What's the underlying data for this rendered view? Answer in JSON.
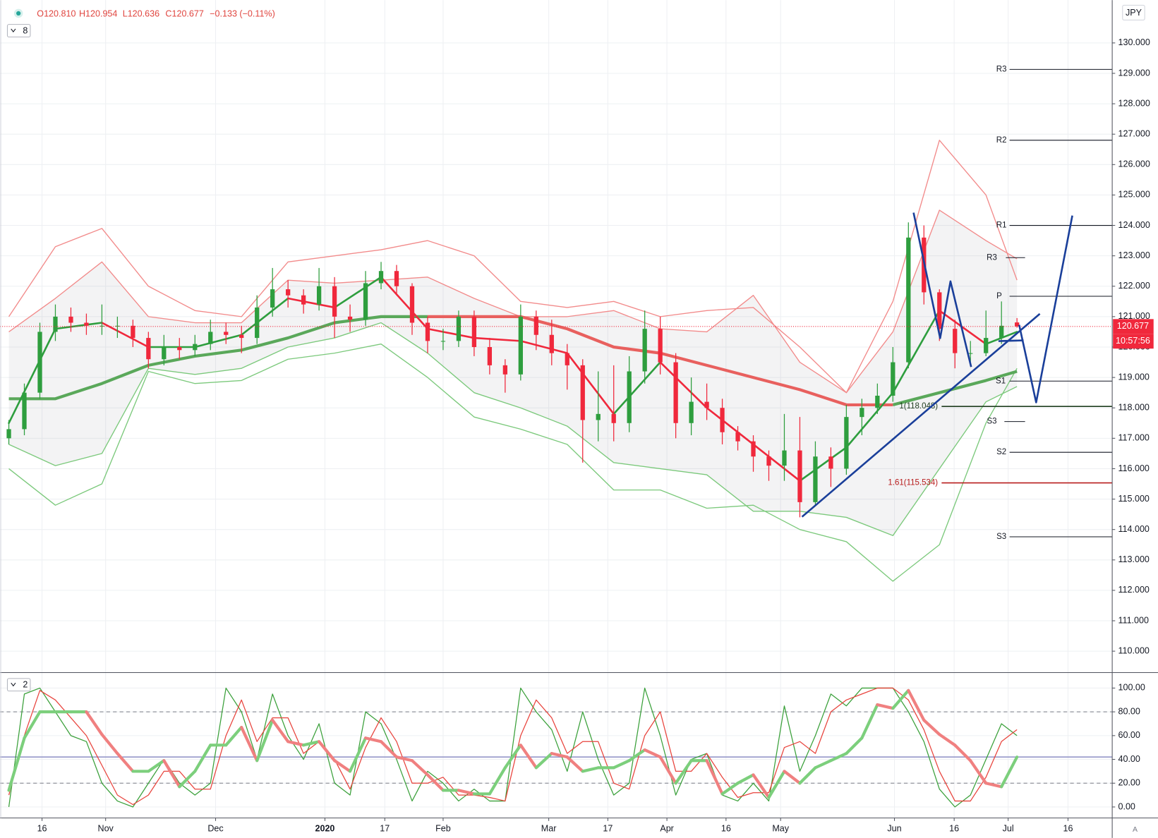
{
  "chart_data": {
    "type": "candlestick",
    "header": {
      "open": "O120.810",
      "high": "H120.954",
      "low": "L120.636",
      "close": "C120.677",
      "change": "−0.133 (−0.11%)"
    },
    "main_indicator_count": 8,
    "oscillator_indicator_count": 2,
    "currency": "JPY",
    "scale_mode": "A",
    "countdown": "10:57:56",
    "up_color": "#2e9e3e",
    "down_color": "#f0283c",
    "grid": true,
    "candles": {
      "open": [
        117.0,
        117.3,
        118.5,
        120.5,
        121.0,
        120.8,
        120.7,
        120.7,
        120.7,
        120.3,
        119.6,
        120.0,
        119.9,
        120.1,
        120.5,
        120.4,
        120.3,
        121.3,
        121.9,
        121.7,
        121.4,
        122.0,
        121.0,
        120.9,
        122.1,
        122.5,
        122.0,
        120.8,
        120.2,
        120.2,
        121.0,
        120.0,
        119.4,
        119.1,
        121.0,
        120.4,
        119.8,
        119.4,
        117.6,
        117.8,
        117.5,
        119.2,
        120.6,
        119.5,
        117.5,
        118.2,
        118.0,
        117.2,
        116.9,
        116.4,
        116.1,
        116.6,
        114.9,
        116.4,
        116.0,
        117.7,
        118.0,
        118.4,
        119.5,
        123.6,
        121.8,
        120.6,
        119.8,
        119.8,
        120.3,
        120.81
      ],
      "high": [
        117.6,
        118.8,
        120.8,
        121.4,
        121.3,
        121.1,
        121.4,
        121.0,
        120.9,
        120.5,
        120.4,
        120.3,
        120.4,
        120.9,
        120.8,
        120.7,
        121.7,
        122.6,
        122.2,
        121.9,
        122.6,
        122.3,
        121.4,
        122.5,
        122.8,
        122.7,
        122.1,
        121.0,
        120.6,
        121.2,
        121.2,
        120.3,
        119.6,
        121.4,
        121.2,
        120.9,
        120.1,
        119.6,
        119.2,
        119.4,
        119.7,
        121.2,
        121.0,
        119.8,
        119.0,
        118.8,
        118.3,
        117.4,
        117.1,
        116.6,
        117.8,
        117.7,
        116.9,
        116.7,
        118.1,
        118.3,
        118.8,
        120.0,
        124.1,
        124.0,
        121.9,
        120.9,
        120.2,
        121.2,
        121.5,
        120.954
      ],
      "low": [
        116.8,
        117.1,
        118.3,
        120.2,
        120.5,
        120.4,
        120.4,
        120.3,
        120.0,
        119.3,
        119.4,
        119.6,
        119.7,
        119.9,
        120.1,
        119.8,
        120.1,
        121.0,
        121.3,
        121.1,
        121.2,
        120.3,
        120.5,
        120.7,
        121.9,
        121.7,
        120.4,
        119.8,
        119.9,
        120.0,
        119.7,
        119.1,
        118.5,
        118.9,
        119.9,
        119.4,
        118.6,
        116.2,
        116.9,
        116.9,
        117.2,
        118.8,
        119.1,
        117.0,
        117.1,
        117.6,
        116.8,
        116.6,
        115.9,
        115.6,
        115.6,
        114.4,
        114.8,
        115.4,
        115.8,
        117.1,
        117.8,
        118.2,
        119.3,
        121.4,
        120.2,
        119.3,
        119.5,
        119.7,
        120.1,
        120.636
      ],
      "close": [
        117.3,
        118.5,
        120.5,
        121.0,
        120.8,
        120.7,
        120.7,
        120.7,
        120.3,
        119.6,
        120.0,
        119.9,
        120.1,
        120.5,
        120.4,
        120.3,
        121.3,
        121.9,
        121.7,
        121.4,
        122.0,
        121.0,
        120.9,
        122.1,
        122.5,
        122.0,
        120.8,
        120.2,
        120.2,
        121.0,
        120.0,
        119.4,
        119.1,
        121.0,
        120.4,
        119.8,
        119.4,
        117.6,
        117.8,
        117.5,
        119.2,
        120.6,
        119.5,
        117.5,
        118.2,
        118.0,
        117.2,
        116.9,
        116.4,
        116.1,
        116.6,
        114.9,
        116.4,
        116.0,
        117.7,
        118.0,
        118.4,
        119.5,
        123.6,
        121.8,
        120.6,
        119.8,
        119.8,
        120.3,
        120.7,
        120.677
      ]
    },
    "xlim": [
      -0.57,
      71.14
    ],
    "xticks": [
      {
        "value": 2.14,
        "label": "16"
      },
      {
        "value": 6.24,
        "label": "Nov"
      },
      {
        "value": 13.33,
        "label": "Dec"
      },
      {
        "value": 20.38,
        "label": "2020"
      },
      {
        "value": 24.24,
        "label": "17"
      },
      {
        "value": 28.0,
        "label": "Feb"
      },
      {
        "value": 34.81,
        "label": "Mar"
      },
      {
        "value": 38.62,
        "label": "17"
      },
      {
        "value": 42.43,
        "label": "Apr"
      },
      {
        "value": 46.24,
        "label": "16"
      },
      {
        "value": 49.76,
        "label": "May"
      },
      {
        "value": 57.1,
        "label": "Jun"
      },
      {
        "value": 60.95,
        "label": "16"
      },
      {
        "value": 64.43,
        "label": "Jul"
      },
      {
        "value": 68.29,
        "label": "16"
      }
    ],
    "ylim": [
      109.32,
      131.41
    ],
    "yticks": [
      {
        "value": 110,
        "label": "110.000"
      },
      {
        "value": 111,
        "label": "111.000"
      },
      {
        "value": 112,
        "label": "112.000"
      },
      {
        "value": 113,
        "label": "113.000"
      },
      {
        "value": 114,
        "label": "114.000"
      },
      {
        "value": 115,
        "label": "115.000"
      },
      {
        "value": 116,
        "label": "116.000"
      },
      {
        "value": 117,
        "label": "117.000"
      },
      {
        "value": 118,
        "label": "118.000"
      },
      {
        "value": 119,
        "label": "119.000"
      },
      {
        "value": 120,
        "label": "120.000"
      },
      {
        "value": 121,
        "label": "121.000"
      },
      {
        "value": 122,
        "label": "122.000"
      },
      {
        "value": 123,
        "label": "123.000"
      },
      {
        "value": 124,
        "label": "124.000"
      },
      {
        "value": 125,
        "label": "125.000"
      },
      {
        "value": 126,
        "label": "126.000"
      },
      {
        "value": 127,
        "label": "127.000"
      },
      {
        "value": 128,
        "label": "128.000"
      },
      {
        "value": 129,
        "label": "129.000"
      },
      {
        "value": 130,
        "label": "130.000"
      }
    ],
    "overlay": {
      "x": [
        0,
        3,
        6,
        9,
        12,
        15,
        18,
        21,
        24,
        27,
        30,
        33,
        36,
        39,
        42,
        45,
        48,
        51,
        54,
        57,
        60,
        63,
        65
      ],
      "series": [
        {
          "color": "#f28b8b",
          "width": 1.3,
          "values": [
            121.0,
            123.3,
            123.9,
            122.0,
            121.2,
            121.0,
            122.8,
            123.0,
            123.2,
            123.5,
            123.0,
            121.5,
            121.3,
            121.5,
            121.0,
            121.2,
            121.3,
            120.0,
            118.5,
            121.5,
            126.8,
            125.0,
            122.2
          ]
        },
        {
          "color": "#f28b8b",
          "width": 1.3,
          "values": [
            120.5,
            121.6,
            122.8,
            121.0,
            120.8,
            120.8,
            122.2,
            122.1,
            122.2,
            122.3,
            121.6,
            121.0,
            121.0,
            121.2,
            120.6,
            120.5,
            121.7,
            119.5,
            118.5,
            120.5,
            124.5,
            123.5,
            122.9
          ]
        },
        {
          "color": "#7cc97c",
          "width": 1.3,
          "values": [
            116.8,
            116.1,
            116.5,
            119.3,
            119.1,
            119.3,
            120.0,
            120.3,
            120.8,
            119.8,
            118.5,
            118.0,
            117.4,
            116.2,
            116.0,
            115.8,
            114.6,
            114.6,
            114.4,
            113.8,
            116.0,
            118.2,
            118.7
          ]
        },
        {
          "color": "#7cc97c",
          "width": 1.3,
          "values": [
            116.0,
            114.8,
            115.5,
            119.2,
            118.8,
            118.9,
            119.6,
            119.8,
            120.1,
            119.0,
            117.7,
            117.3,
            116.8,
            115.3,
            115.3,
            114.7,
            114.8,
            114.0,
            113.6,
            112.3,
            113.5,
            117.5,
            119.3
          ]
        },
        {
          "color": "#5aa85a",
          "width": 4,
          "values": [
            118.3,
            118.3,
            118.8,
            119.4,
            119.7,
            119.9,
            120.3,
            120.8,
            121.0,
            121.0,
            null,
            null,
            null,
            null,
            null,
            null,
            null,
            null,
            null,
            118.1,
            118.5,
            118.9,
            119.2
          ]
        },
        {
          "color": "#e8605e",
          "width": 4,
          "values": [
            null,
            null,
            null,
            null,
            null,
            null,
            null,
            null,
            null,
            121.0,
            121.0,
            121.0,
            120.6,
            120.0,
            119.8,
            119.4,
            119.0,
            118.6,
            118.1,
            118.1,
            null,
            null,
            null
          ]
        }
      ],
      "fast_ma": {
        "width": 2.5,
        "values": [
          117.5,
          120.6,
          120.8,
          120.0,
          120.0,
          120.4,
          121.6,
          121.3,
          122.3,
          120.6,
          120.3,
          120.2,
          119.8,
          117.8,
          119.5,
          118.0,
          116.8,
          115.6,
          116.7,
          118.5,
          121.2,
          120.1,
          120.5
        ]
      }
    },
    "pivots": [
      {
        "label": "R3",
        "value": 129.13
      },
      {
        "label": "R2",
        "value": 126.8
      },
      {
        "label": "R1",
        "value": 124.0
      },
      {
        "label": "R3",
        "value": 122.94
      },
      {
        "label": "P",
        "value": 121.67
      },
      {
        "label": "S1",
        "value": 118.88
      },
      {
        "label": "S3",
        "value": 117.55
      },
      {
        "label": "S2",
        "value": 116.54
      },
      {
        "label": "S3",
        "value": 113.76
      }
    ],
    "fib_levels": [
      {
        "label": "1(118.048)",
        "value": 118.048,
        "color": "#1f3d1f"
      },
      {
        "label": "1.61(115.534)",
        "value": 115.534,
        "color": "#b71c1c"
      }
    ],
    "oscillator": {
      "type": "line",
      "ylim": [
        -9.3,
        112.4
      ],
      "yticks": [
        {
          "value": 0,
          "label": "0.00"
        },
        {
          "value": 20,
          "label": "20.00"
        },
        {
          "value": 40,
          "label": "40.00"
        },
        {
          "value": 60,
          "label": "60.00"
        },
        {
          "value": 80,
          "label": "80.00"
        },
        {
          "value": 100,
          "label": "100.00"
        }
      ],
      "dashed_levels": [
        80,
        20
      ],
      "hline": 42,
      "thick": {
        "up_color": "#7ccf7c",
        "down_color": "#f08080",
        "width": 4,
        "values": [
          14,
          58,
          80,
          80,
          80,
          80,
          61,
          45,
          30,
          30,
          39,
          17,
          30,
          52,
          52,
          67,
          39,
          73,
          55,
          52,
          55,
          39,
          30,
          58,
          55,
          42,
          39,
          27,
          14,
          14,
          11,
          11,
          33,
          52,
          33,
          45,
          42,
          30,
          33,
          33,
          39,
          48,
          42,
          20,
          39,
          39,
          11,
          20,
          27,
          8,
          30,
          20,
          33,
          39,
          45,
          58,
          86,
          83,
          98,
          73,
          61,
          52,
          39,
          20,
          17,
          42
        ]
      },
      "series": [
        {
          "color": "#3aa03a",
          "values": [
            0,
            95,
            100,
            80,
            60,
            55,
            20,
            5,
            0,
            20,
            40,
            20,
            10,
            20,
            100,
            80,
            40,
            95,
            60,
            40,
            70,
            20,
            10,
            80,
            70,
            40,
            5,
            30,
            20,
            5,
            15,
            5,
            5,
            100,
            80,
            65,
            30,
            80,
            40,
            10,
            20,
            100,
            60,
            10,
            40,
            45,
            10,
            5,
            20,
            5,
            85,
            30,
            60,
            95,
            85,
            100,
            100,
            100,
            80,
            55,
            15,
            0,
            10,
            40,
            70,
            60
          ]
        },
        {
          "color": "#e8433c",
          "values": [
            10,
            60,
            98,
            90,
            75,
            60,
            35,
            10,
            2,
            10,
            30,
            30,
            15,
            15,
            60,
            90,
            55,
            75,
            75,
            45,
            55,
            40,
            15,
            50,
            75,
            55,
            20,
            20,
            25,
            10,
            10,
            8,
            5,
            60,
            90,
            75,
            45,
            55,
            55,
            20,
            15,
            60,
            80,
            30,
            30,
            45,
            25,
            8,
            12,
            12,
            50,
            55,
            45,
            80,
            90,
            95,
            100,
            100,
            90,
            65,
            30,
            5,
            5,
            25,
            55,
            65
          ]
        }
      ]
    }
  }
}
